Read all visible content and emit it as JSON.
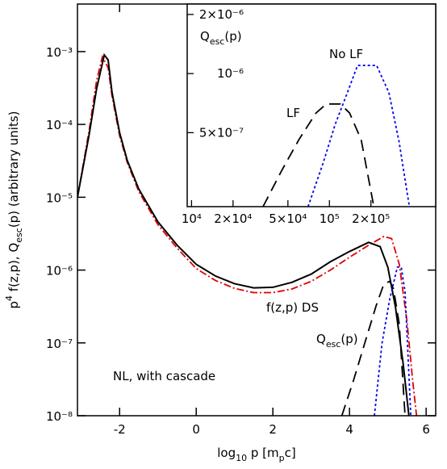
{
  "chart_data": [
    {
      "type": "line",
      "x_label": [
        {
          "text": "log"
        },
        {
          "sub": "10"
        },
        {
          "text": " p [m"
        },
        {
          "sub": "p"
        },
        {
          "text": "c]"
        }
      ],
      "y_label": [
        {
          "text": "p"
        },
        {
          "sup": "4"
        },
        {
          "text": " f(z,p), Q"
        },
        {
          "sub": "esc"
        },
        {
          "text": "(p) (arbitrary units)"
        }
      ],
      "xlim": [
        -3.1,
        6.25
      ],
      "ylim": [
        1e-08,
        0.0045
      ],
      "log_y": true,
      "xticks": [
        -2,
        0,
        2,
        4,
        6
      ],
      "yticks": [
        {
          "value": 1e-08,
          "label": "10⁻⁸"
        },
        {
          "value": 1e-07,
          "label": "10⁻⁷"
        },
        {
          "value": 1e-06,
          "label": "10⁻⁶"
        },
        {
          "value": 1e-05,
          "label": "10⁻⁵"
        },
        {
          "value": 0.0001,
          "label": "10⁻⁴"
        },
        {
          "value": 0.001,
          "label": "10⁻³"
        }
      ],
      "series": [
        {
          "color": "#e00000",
          "style": "dashdot",
          "x": [
            -3.1,
            -2.8,
            -2.6,
            -2.45,
            -2.3,
            -2.2,
            -2,
            -1.8,
            -1.5,
            -1,
            -0.5,
            0,
            0.5,
            1,
            1.5,
            2,
            2.5,
            3,
            3.5,
            4,
            4.5,
            4.9,
            5.1,
            5.3,
            5.5,
            5.65,
            5.75
          ],
          "values": [
            1e-05,
            8e-05,
            0.0004,
            0.00085,
            0.0006,
            0.00025,
            7e-05,
            3e-05,
            1.2e-05,
            4.2e-06,
            2e-06,
            1.05e-06,
            7.2e-07,
            5.6e-07,
            4.9e-07,
            4.9e-07,
            5.5e-07,
            7e-07,
            1e-06,
            1.5e-06,
            2.2e-06,
            2.9e-06,
            2.7e-06,
            1.2e-06,
            2e-07,
            3e-08,
            1e-08
          ]
        },
        {
          "color": "#000000",
          "style": "solid",
          "x": [
            -3.1,
            -2.8,
            -2.6,
            -2.4,
            -2.3,
            -2.2,
            -2,
            -1.8,
            -1.5,
            -1,
            -0.5,
            0,
            0.5,
            1,
            1.5,
            2,
            2.5,
            3,
            3.5,
            4,
            4.5,
            4.8,
            5,
            5.2,
            5.4,
            5.55
          ],
          "values": [
            1e-05,
            7e-05,
            0.00031,
            0.0009,
            0.00077,
            0.00028,
            7.7e-05,
            3.2e-05,
            1.3e-05,
            4.6e-06,
            2.2e-06,
            1.2e-06,
            8.3e-07,
            6.5e-07,
            5.7e-07,
            5.8e-07,
            6.8e-07,
            8.8e-07,
            1.3e-06,
            1.8e-06,
            2.4e-06,
            2.1e-06,
            1.1e-06,
            3.1e-07,
            5.2e-08,
            1e-08
          ]
        },
        {
          "color": "#000000",
          "style": "dashed",
          "x": [
            3.8,
            4.1,
            4.4,
            4.7,
            4.9,
            5.05,
            5.15,
            5.3,
            5.45
          ],
          "values": [
            1e-08,
            3e-08,
            1e-07,
            3.3e-07,
            6.5e-07,
            7e-07,
            5.5e-07,
            1.8e-07,
            1e-08
          ]
        },
        {
          "color": "#0000ee",
          "style": "dotted",
          "x": [
            4.65,
            4.85,
            5.05,
            5.25,
            5.35,
            5.45,
            5.6
          ],
          "values": [
            1e-08,
            1e-07,
            4e-07,
            1.1e-06,
            1.1e-06,
            5e-07,
            1e-08
          ]
        }
      ],
      "annotations": [
        [
          {
            "text": "f(z,p) DS"
          }
        ],
        [
          {
            "text": "Q"
          },
          {
            "sub": "esc"
          },
          {
            "text": "(p)"
          }
        ],
        [
          {
            "text": "NL, with cascade"
          }
        ]
      ]
    },
    {
      "type": "line",
      "title": [
        {
          "text": "Q"
        },
        {
          "sub": "esc"
        },
        {
          "text": "(p)"
        }
      ],
      "xlim": [
        9300,
        590000
      ],
      "ylim": [
        2.1e-07,
        2.26e-06
      ],
      "log_x": true,
      "log_y": true,
      "xticks": [
        {
          "value": 10000,
          "label": "10⁴"
        },
        {
          "value": 20000,
          "label": "2×10⁴"
        },
        {
          "value": 50000,
          "label": "5×10⁴"
        },
        {
          "value": 100000,
          "label": "10⁵"
        },
        {
          "value": 200000,
          "label": "2×10⁵"
        }
      ],
      "yticks": [
        {
          "value": 5e-07,
          "label": "5×10⁻⁷"
        },
        {
          "value": 1e-06,
          "label": "10⁻⁶"
        },
        {
          "value": 2e-06,
          "label": "2×10⁻⁶"
        }
      ],
      "series": [
        {
          "color": "#000000",
          "style": "dashed",
          "x": [
            33000,
            45000,
            60000,
            80000,
            95000,
            120000,
            140000,
            170000,
            210000
          ],
          "values": [
            2.1e-07,
            3.2e-07,
            4.6e-07,
            6.3e-07,
            7e-07,
            7e-07,
            6.3e-07,
            4.6e-07,
            2.1e-07
          ]
        },
        {
          "color": "#0000ee",
          "style": "dotted",
          "x": [
            70000,
            90000,
            110000,
            135000,
            160000,
            220000,
            270000,
            320000,
            380000
          ],
          "values": [
            2.1e-07,
            3.5e-07,
            5.5e-07,
            8e-07,
            1.1e-06,
            1.1e-06,
            8e-07,
            4.5e-07,
            2.1e-07
          ]
        }
      ],
      "annotations": [
        [
          {
            "text": "No LF"
          }
        ],
        [
          {
            "text": "LF"
          }
        ]
      ]
    }
  ]
}
